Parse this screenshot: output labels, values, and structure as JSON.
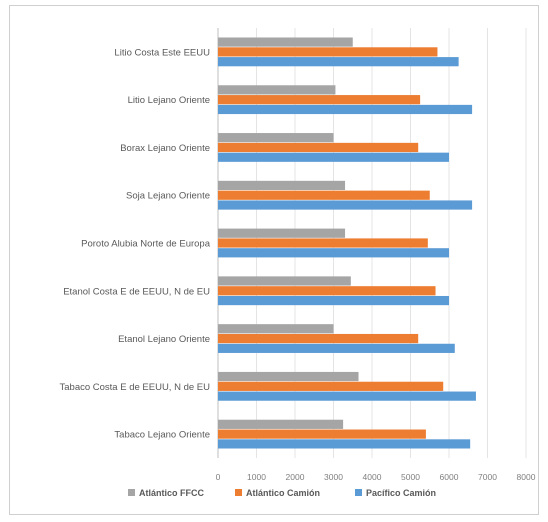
{
  "chart_data": {
    "type": "bar",
    "orientation": "horizontal",
    "categories": [
      "Litio Costa Este EEUU",
      "Litio Lejano Oriente",
      "Borax Lejano Oriente",
      "Soja Lejano Oriente",
      "Poroto Alubia Norte de Europa",
      "Etanol Costa E de EEUU, N de EU",
      "Etanol Lejano Oriente",
      "Tabaco Costa E de EEUU, N de EU",
      "Tabaco Lejano Oriente"
    ],
    "series": [
      {
        "name": "Atlántico FFCC",
        "color": "#a5a5a5",
        "values": [
          3500,
          3050,
          3000,
          3300,
          3300,
          3450,
          3000,
          3650,
          3250
        ]
      },
      {
        "name": "Atlántico Camión",
        "color": "#ed7d31",
        "values": [
          5700,
          5250,
          5200,
          5500,
          5450,
          5650,
          5200,
          5850,
          5400
        ]
      },
      {
        "name": "Pacífico Camión",
        "color": "#5b9bd5",
        "values": [
          6250,
          6600,
          6000,
          6600,
          6000,
          6000,
          6150,
          6700,
          6550
        ]
      }
    ],
    "xlim": [
      0,
      8000
    ],
    "xticks": [
      "0",
      "1000",
      "2000",
      "3000",
      "4000",
      "5000",
      "6000",
      "7000",
      "8000"
    ],
    "grid": true,
    "legend_position": "bottom",
    "title": "",
    "xlabel": "",
    "ylabel": ""
  }
}
